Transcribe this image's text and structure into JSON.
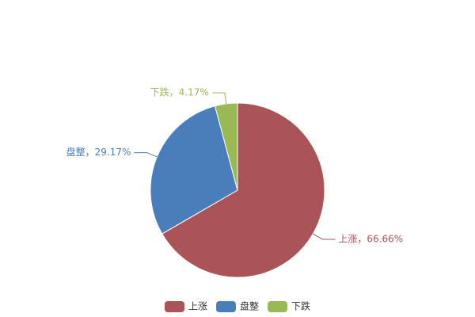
{
  "chart_data": {
    "type": "pie",
    "categories": [
      "上涨",
      "盘整",
      "下跌"
    ],
    "values": [
      66.66,
      29.17,
      4.17
    ],
    "value_labels": [
      "上涨，66.66%",
      "盘整，29.17%",
      "下跌，4.17%"
    ],
    "colors": [
      "#ab5458",
      "#4a7ebb",
      "#98b954"
    ],
    "legend": "bottom"
  }
}
